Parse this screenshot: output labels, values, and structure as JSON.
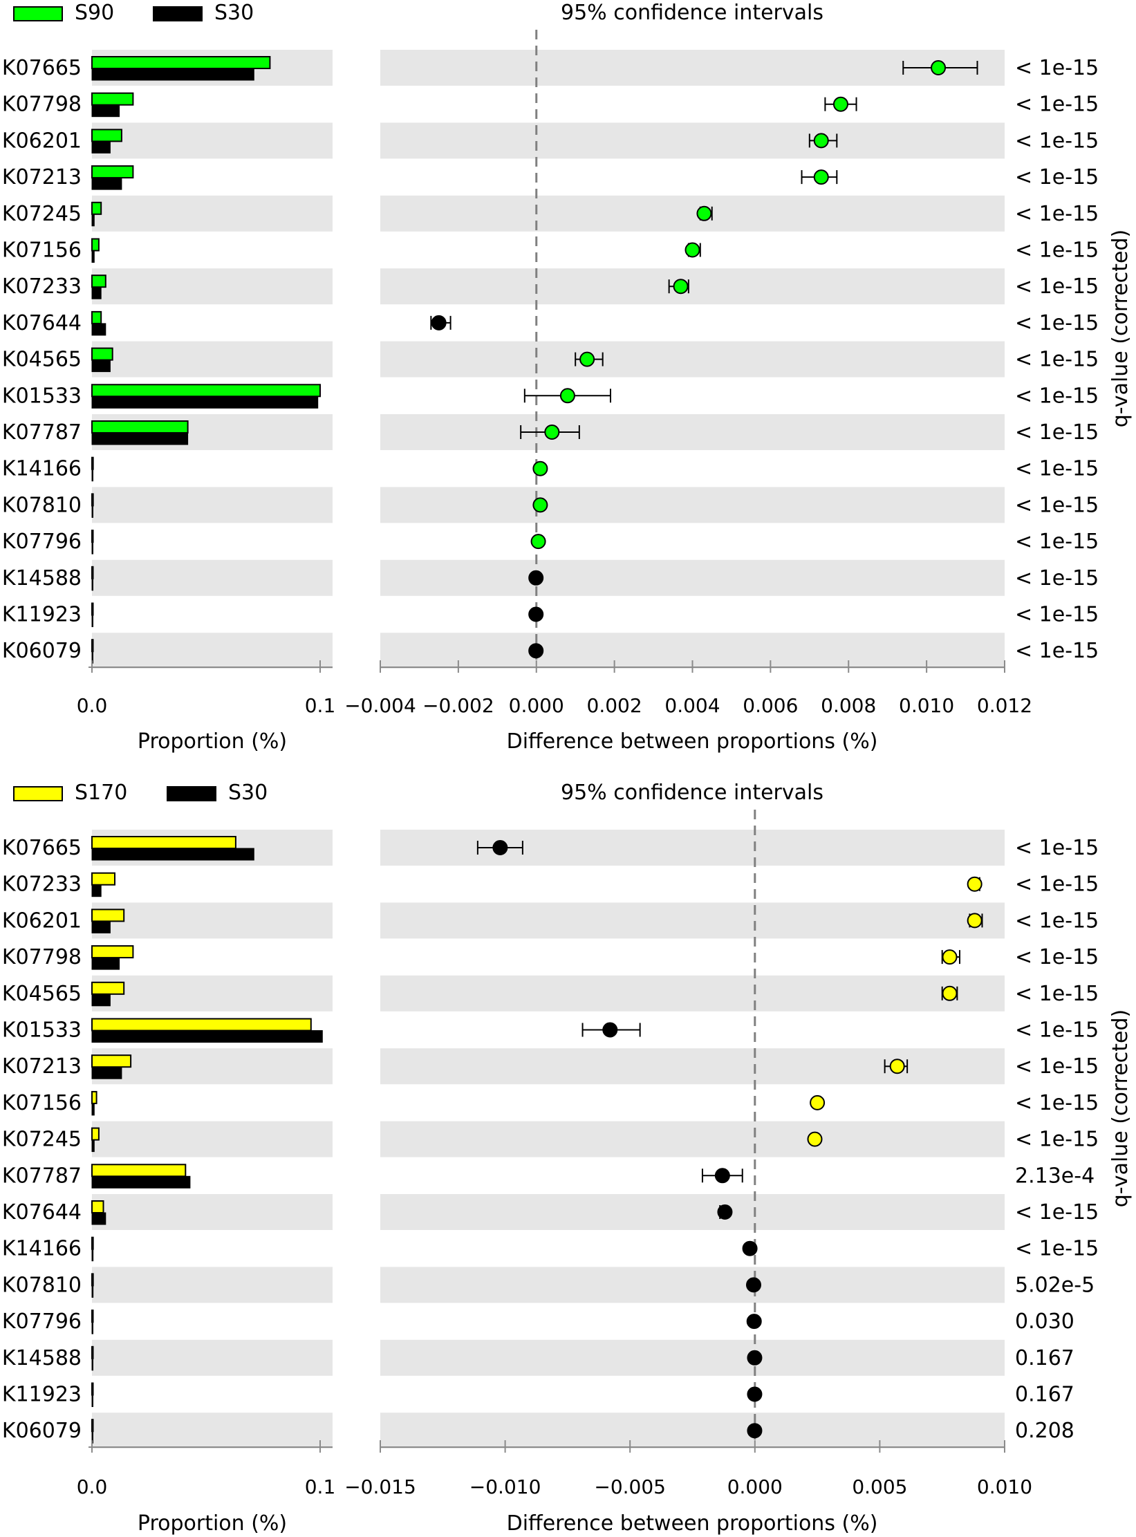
{
  "chart_data": [
    {
      "type": "extended-error-bar",
      "legend": [
        {
          "name": "S90",
          "color": "#00ff00"
        },
        {
          "name": "S30",
          "color": "#000000"
        }
      ],
      "ci_title": "95% confidence intervals",
      "left_xlabel": "Proportion (%)",
      "right_xlabel": "Difference between proportions (%)",
      "qvalue_label": "q-value (corrected)",
      "left_xlim": [
        0.0,
        0.1
      ],
      "left_ticks": [
        "0.0",
        "0.1"
      ],
      "right_xlim": [
        -0.004,
        0.012
      ],
      "right_ticks": [
        -0.004,
        -0.002,
        0.0,
        0.002,
        0.004,
        0.006,
        0.008,
        0.01,
        0.012
      ],
      "right_tick_labels": [
        "−0.004",
        "−0.002",
        "0.000",
        "0.002",
        "0.004",
        "0.006",
        "0.008",
        "0.010",
        "0.012"
      ],
      "rows": [
        {
          "feature": "K07665",
          "prop_a": 0.078,
          "prop_b": 0.071,
          "diff": 0.0103,
          "ci": [
            0.0094,
            0.0113
          ],
          "q": "< 1e-15"
        },
        {
          "feature": "K07798",
          "prop_a": 0.018,
          "prop_b": 0.012,
          "diff": 0.0078,
          "ci": [
            0.0074,
            0.0082
          ],
          "q": "< 1e-15"
        },
        {
          "feature": "K06201",
          "prop_a": 0.013,
          "prop_b": 0.008,
          "diff": 0.0073,
          "ci": [
            0.007,
            0.0077
          ],
          "q": "< 1e-15"
        },
        {
          "feature": "K07213",
          "prop_a": 0.018,
          "prop_b": 0.013,
          "diff": 0.0073,
          "ci": [
            0.0068,
            0.0077
          ],
          "q": "< 1e-15"
        },
        {
          "feature": "K07245",
          "prop_a": 0.004,
          "prop_b": 0.001,
          "diff": 0.0043,
          "ci": [
            0.0042,
            0.0045
          ],
          "q": "< 1e-15"
        },
        {
          "feature": "K07156",
          "prop_a": 0.003,
          "prop_b": 0.001,
          "diff": 0.004,
          "ci": [
            0.0039,
            0.0042
          ],
          "q": "< 1e-15"
        },
        {
          "feature": "K07233",
          "prop_a": 0.006,
          "prop_b": 0.004,
          "diff": 0.0037,
          "ci": [
            0.0034,
            0.0039
          ],
          "q": "< 1e-15"
        },
        {
          "feature": "K07644",
          "prop_a": 0.004,
          "prop_b": 0.006,
          "diff": -0.0025,
          "ci": [
            -0.0027,
            -0.0022
          ],
          "q": "< 1e-15"
        },
        {
          "feature": "K04565",
          "prop_a": 0.009,
          "prop_b": 0.008,
          "diff": 0.0013,
          "ci": [
            0.001,
            0.0017
          ],
          "q": "< 1e-15"
        },
        {
          "feature": "K01533",
          "prop_a": 0.1,
          "prop_b": 0.099,
          "diff": 0.0008,
          "ci": [
            -0.0003,
            0.0019
          ],
          "q": "< 1e-15"
        },
        {
          "feature": "K07787",
          "prop_a": 0.042,
          "prop_b": 0.042,
          "diff": 0.0004,
          "ci": [
            -0.0004,
            0.0011
          ],
          "q": "< 1e-15"
        },
        {
          "feature": "K14166",
          "prop_a": 0.0005,
          "prop_b": 0.0004,
          "diff": 0.0001,
          "ci": [
            0.0001,
            0.0001
          ],
          "q": "< 1e-15"
        },
        {
          "feature": "K07810",
          "prop_a": 0.0005,
          "prop_b": 0.0004,
          "diff": 0.0001,
          "ci": [
            0.0001,
            0.0001
          ],
          "q": "< 1e-15"
        },
        {
          "feature": "K07796",
          "prop_a": 0.0004,
          "prop_b": 0.0003,
          "diff": 5e-05,
          "ci": [
            5e-05,
            5e-05
          ],
          "q": "< 1e-15"
        },
        {
          "feature": "K14588",
          "prop_a": 0.0004,
          "prop_b": 0.0004,
          "diff": -1e-05,
          "ci": [
            -1e-05,
            -1e-05
          ],
          "q": "< 1e-15"
        },
        {
          "feature": "K11923",
          "prop_a": 0.0003,
          "prop_b": 0.0003,
          "diff": -1e-05,
          "ci": [
            -1e-05,
            -1e-05
          ],
          "q": "< 1e-15"
        },
        {
          "feature": "K06079",
          "prop_a": 0.0003,
          "prop_b": 0.0003,
          "diff": -1e-05,
          "ci": [
            -1e-05,
            -1e-05
          ],
          "q": "< 1e-15"
        }
      ]
    },
    {
      "type": "extended-error-bar",
      "legend": [
        {
          "name": "S170",
          "color": "#ffff00"
        },
        {
          "name": "S30",
          "color": "#000000"
        }
      ],
      "ci_title": "95% confidence intervals",
      "left_xlabel": "Proportion (%)",
      "right_xlabel": "Difference between proportions (%)",
      "qvalue_label": "q-value (corrected)",
      "left_xlim": [
        0.0,
        0.1
      ],
      "left_ticks": [
        "0.0",
        "0.1"
      ],
      "right_xlim": [
        -0.015,
        0.01
      ],
      "right_ticks": [
        -0.015,
        -0.01,
        -0.005,
        0.0,
        0.005,
        0.01
      ],
      "right_tick_labels": [
        "−0.015",
        "−0.010",
        "−0.005",
        "0.000",
        "0.005",
        "0.010"
      ],
      "rows": [
        {
          "feature": "K07665",
          "prop_a": 0.063,
          "prop_b": 0.071,
          "diff": -0.0102,
          "ci": [
            -0.0111,
            -0.0093
          ],
          "q": "< 1e-15"
        },
        {
          "feature": "K07233",
          "prop_a": 0.01,
          "prop_b": 0.004,
          "diff": 0.0088,
          "ci": [
            0.0087,
            0.009
          ],
          "q": "< 1e-15"
        },
        {
          "feature": "K06201",
          "prop_a": 0.014,
          "prop_b": 0.008,
          "diff": 0.0088,
          "ci": [
            0.0086,
            0.0091
          ],
          "q": "< 1e-15"
        },
        {
          "feature": "K07798",
          "prop_a": 0.018,
          "prop_b": 0.012,
          "diff": 0.0078,
          "ci": [
            0.0075,
            0.0082
          ],
          "q": "< 1e-15"
        },
        {
          "feature": "K04565",
          "prop_a": 0.014,
          "prop_b": 0.008,
          "diff": 0.0078,
          "ci": [
            0.0075,
            0.0081
          ],
          "q": "< 1e-15"
        },
        {
          "feature": "K01533",
          "prop_a": 0.096,
          "prop_b": 0.101,
          "diff": -0.0058,
          "ci": [
            -0.0069,
            -0.0046
          ],
          "q": "< 1e-15"
        },
        {
          "feature": "K07213",
          "prop_a": 0.017,
          "prop_b": 0.013,
          "diff": 0.0057,
          "ci": [
            0.0052,
            0.0061
          ],
          "q": "< 1e-15"
        },
        {
          "feature": "K07156",
          "prop_a": 0.002,
          "prop_b": 0.001,
          "diff": 0.0025,
          "ci": [
            0.0025,
            0.0026
          ],
          "q": "< 1e-15"
        },
        {
          "feature": "K07245",
          "prop_a": 0.003,
          "prop_b": 0.001,
          "diff": 0.0024,
          "ci": [
            0.0024,
            0.0025
          ],
          "q": "< 1e-15"
        },
        {
          "feature": "K07787",
          "prop_a": 0.041,
          "prop_b": 0.043,
          "diff": -0.0013,
          "ci": [
            -0.0021,
            -0.0005
          ],
          "q": "2.13e-4"
        },
        {
          "feature": "K07644",
          "prop_a": 0.005,
          "prop_b": 0.006,
          "diff": -0.0012,
          "ci": [
            -0.0014,
            -0.0011
          ],
          "q": "< 1e-15"
        },
        {
          "feature": "K14166",
          "prop_a": 0.0005,
          "prop_b": 0.0005,
          "diff": -0.0002,
          "ci": [
            -0.0002,
            -0.0002
          ],
          "q": "< 1e-15"
        },
        {
          "feature": "K07810",
          "prop_a": 0.0005,
          "prop_b": 0.0005,
          "diff": -5e-05,
          "ci": [
            -5e-05,
            -5e-05
          ],
          "q": "5.02e-5"
        },
        {
          "feature": "K07796",
          "prop_a": 0.0004,
          "prop_b": 0.0004,
          "diff": -3e-05,
          "ci": [
            -3e-05,
            -3e-05
          ],
          "q": "0.030"
        },
        {
          "feature": "K14588",
          "prop_a": 0.0004,
          "prop_b": 0.0004,
          "diff": -1e-05,
          "ci": [
            -1e-05,
            -1e-05
          ],
          "q": "0.167"
        },
        {
          "feature": "K11923",
          "prop_a": 0.0003,
          "prop_b": 0.0003,
          "diff": -1e-05,
          "ci": [
            -1e-05,
            -1e-05
          ],
          "q": "0.167"
        },
        {
          "feature": "K06079",
          "prop_a": 0.0003,
          "prop_b": 0.0003,
          "diff": -1e-05,
          "ci": [
            -1e-05,
            -1e-05
          ],
          "q": "0.208"
        }
      ]
    }
  ]
}
